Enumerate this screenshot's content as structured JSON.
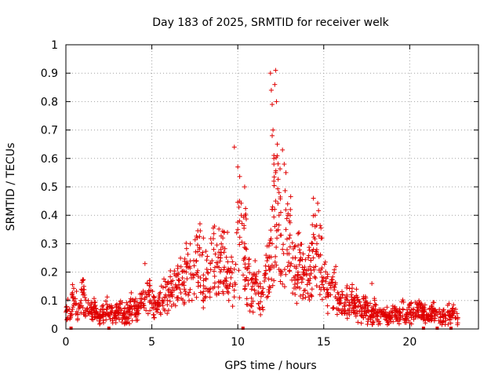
{
  "chart_data": {
    "type": "scatter",
    "title": "Day 183 of 2025, SRMTID for receiver welk",
    "xlabel": "GPS time / hours",
    "ylabel": "SRMTID / TECUs",
    "xlim": [
      0,
      24
    ],
    "ylim": [
      0,
      1
    ],
    "xticks": [
      0,
      5,
      10,
      15,
      20
    ],
    "xtick_labels": [
      "0",
      "5",
      "10",
      "15",
      "20"
    ],
    "yticks": [
      0,
      0.1,
      0.2,
      0.3,
      0.4,
      0.5,
      0.6,
      0.7,
      0.8,
      0.9,
      1
    ],
    "ytick_labels": [
      "0",
      "0.1",
      "0.2",
      "0.3",
      "0.4",
      "0.5",
      "0.6",
      "0.7",
      "0.8",
      "0.9",
      "1"
    ],
    "grid": true,
    "marker": "+",
    "color": "#e00000",
    "series": [
      {
        "name": "SRMTID",
        "x": [
          0.0,
          0.2,
          0.4,
          0.6,
          0.8,
          1.0,
          1.2,
          1.4,
          1.6,
          1.8,
          2.0,
          2.2,
          2.4,
          2.6,
          2.8,
          3.0,
          3.2,
          3.4,
          3.6,
          3.8,
          4.0,
          4.2,
          4.4,
          4.6,
          4.8,
          5.0,
          5.2,
          5.4,
          5.6,
          5.8,
          6.0,
          6.2,
          6.4,
          6.6,
          6.8,
          7.0,
          7.2,
          7.4,
          7.6,
          7.8,
          8.0,
          8.2,
          8.4,
          8.6,
          8.8,
          9.0,
          9.2,
          9.4,
          9.6,
          9.8,
          10.0,
          10.2,
          10.4,
          10.6,
          10.8,
          11.0,
          11.2,
          11.4,
          11.6,
          11.8,
          12.0,
          12.2,
          12.4,
          12.6,
          12.8,
          13.0,
          13.2,
          13.4,
          13.6,
          13.8,
          14.0,
          14.2,
          14.4,
          14.6,
          14.8,
          15.0,
          15.2,
          15.4,
          15.6,
          15.8,
          16.0,
          16.2,
          16.4,
          16.6,
          16.8,
          17.0,
          17.2,
          17.4,
          17.6,
          17.8,
          18.0,
          18.2,
          18.4,
          18.6,
          18.8,
          19.0,
          19.2,
          19.4,
          19.6,
          19.8,
          20.0,
          20.2,
          20.4,
          20.6,
          20.8,
          21.0,
          21.2,
          21.4,
          21.6,
          21.8,
          22.0,
          22.2,
          22.4,
          22.6,
          22.8,
          0.1,
          0.5,
          0.9,
          1.3,
          1.7,
          2.1,
          2.5,
          2.9,
          3.3,
          3.7,
          4.1,
          4.5,
          4.9,
          5.3,
          5.7,
          6.1,
          6.5,
          6.9,
          7.3,
          7.7,
          8.1,
          8.5,
          8.9,
          9.3,
          9.7,
          10.1,
          10.5,
          10.9,
          11.3,
          11.7,
          12.1,
          12.5,
          12.9,
          13.3,
          13.7,
          14.1,
          14.5,
          14.9,
          15.3,
          15.7,
          16.1,
          16.5,
          16.9,
          17.3,
          17.7,
          18.1,
          18.5,
          18.9,
          19.3,
          19.7,
          20.1,
          20.5,
          20.9,
          21.3,
          21.7,
          22.1,
          22.5,
          4.6,
          7.8,
          8.0,
          9.4,
          9.8,
          10.0,
          10.1,
          10.1,
          10.4,
          11.9,
          11.95,
          12.0,
          12.05,
          12.1,
          12.15,
          12.2,
          12.25,
          12.1,
          12.3,
          12.2,
          12.0,
          12.1,
          12.6,
          12.7,
          12.8,
          12.9,
          13.0,
          12.5,
          12.4,
          14.4,
          14.5,
          17.8,
          13.5,
          11.8
        ],
        "y": [
          0.06,
          0.07,
          0.11,
          0.09,
          0.08,
          0.12,
          0.07,
          0.06,
          0.07,
          0.06,
          0.05,
          0.06,
          0.07,
          0.06,
          0.05,
          0.06,
          0.07,
          0.05,
          0.06,
          0.08,
          0.07,
          0.08,
          0.09,
          0.11,
          0.12,
          0.09,
          0.08,
          0.09,
          0.1,
          0.12,
          0.14,
          0.12,
          0.15,
          0.17,
          0.16,
          0.2,
          0.22,
          0.18,
          0.24,
          0.26,
          0.19,
          0.21,
          0.23,
          0.28,
          0.22,
          0.25,
          0.27,
          0.2,
          0.18,
          0.21,
          0.35,
          0.4,
          0.3,
          0.17,
          0.14,
          0.16,
          0.15,
          0.13,
          0.18,
          0.22,
          0.3,
          0.45,
          0.4,
          0.28,
          0.35,
          0.32,
          0.25,
          0.22,
          0.24,
          0.2,
          0.19,
          0.22,
          0.28,
          0.3,
          0.26,
          0.18,
          0.14,
          0.12,
          0.15,
          0.1,
          0.09,
          0.08,
          0.1,
          0.12,
          0.09,
          0.08,
          0.07,
          0.08,
          0.06,
          0.05,
          0.07,
          0.06,
          0.05,
          0.06,
          0.04,
          0.06,
          0.05,
          0.06,
          0.07,
          0.05,
          0.06,
          0.05,
          0.06,
          0.07,
          0.05,
          0.04,
          0.05,
          0.06,
          0.05,
          0.04,
          0.05,
          0.06,
          0.05,
          0.06,
          0.04,
          0.04,
          0.09,
          0.14,
          0.1,
          0.04,
          0.08,
          0.05,
          0.06,
          0.04,
          0.05,
          0.03,
          0.09,
          0.1,
          0.06,
          0.07,
          0.13,
          0.11,
          0.14,
          0.18,
          0.15,
          0.11,
          0.24,
          0.27,
          0.15,
          0.08,
          0.11,
          0.28,
          0.19,
          0.16,
          0.24,
          0.17,
          0.19,
          0.22,
          0.29,
          0.18,
          0.21,
          0.36,
          0.32,
          0.16,
          0.22,
          0.07,
          0.05,
          0.14,
          0.04,
          0.09,
          0.03,
          0.05,
          0.04,
          0.03,
          0.03,
          0.04,
          0.05,
          0.03,
          0.08,
          0.03,
          0.03,
          0.04,
          0.23,
          0.37,
          0.32,
          0.34,
          0.64,
          0.57,
          0.45,
          0.38,
          0.5,
          0.9,
          0.84,
          0.79,
          0.7,
          0.6,
          0.86,
          0.91,
          0.8,
          0.58,
          0.65,
          0.55,
          0.68,
          0.52,
          0.63,
          0.58,
          0.55,
          0.44,
          0.38,
          0.41,
          0.48,
          0.46,
          0.4,
          0.16,
          0.2,
          0.13
        ],
        "gap_markers_x": [
          0.3,
          2.5,
          10.3,
          20.8,
          21.6,
          22.4
        ]
      }
    ]
  }
}
